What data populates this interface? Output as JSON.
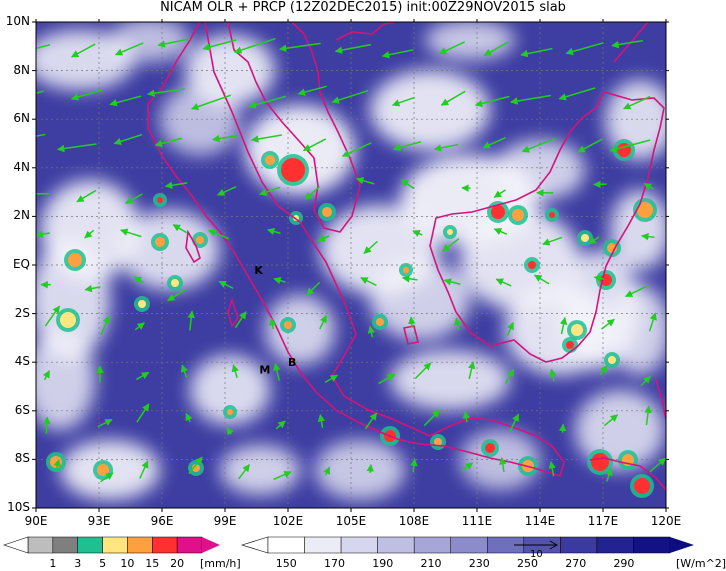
{
  "title": "NICAM OLR + PRCP (12Z02DEC2015) init:00Z29NOV2015 slab",
  "map": {
    "y_ticks": [
      "10N",
      "8N",
      "6N",
      "4N",
      "2N",
      "EQ",
      "2S",
      "4S",
      "6S",
      "8S",
      "10S"
    ],
    "x_ticks": [
      "90E",
      "93E",
      "96E",
      "99E",
      "102E",
      "105E",
      "108E",
      "111E",
      "114E",
      "117E",
      "120E"
    ],
    "places": [
      {
        "label": "K",
        "lon": 100.6,
        "lat": -0.2
      },
      {
        "label": "M",
        "lon": 100.9,
        "lat": -4.3
      },
      {
        "label": "B",
        "lon": 102.2,
        "lat": -4.0
      }
    ],
    "colors": {
      "frame": "#000000",
      "coast": "#d4147a",
      "wind": "#22cc22",
      "grid": "#777777"
    }
  },
  "precip_colorbar": {
    "labels": [
      "1",
      "3",
      "5",
      "10",
      "15",
      "20"
    ],
    "unit": "[mm/h]",
    "colors": [
      "#bdbdbd",
      "#7f7f7f",
      "#1fbf8f",
      "#ffe680",
      "#ffa040",
      "#ff3030",
      "#e0108a"
    ]
  },
  "olr_colorbar": {
    "labels": [
      "150",
      "170",
      "190",
      "210",
      "230",
      "250",
      "270",
      "290"
    ],
    "unit": "[W/m^2]",
    "vector_ref": "10",
    "colors": [
      "#ffffff",
      "#ececf6",
      "#d6d6ee",
      "#bfbfe4",
      "#a6a6d8",
      "#8c8ccb",
      "#6f6fbd",
      "#5454ae",
      "#3a3aa0",
      "#222291",
      "#121284"
    ]
  }
}
